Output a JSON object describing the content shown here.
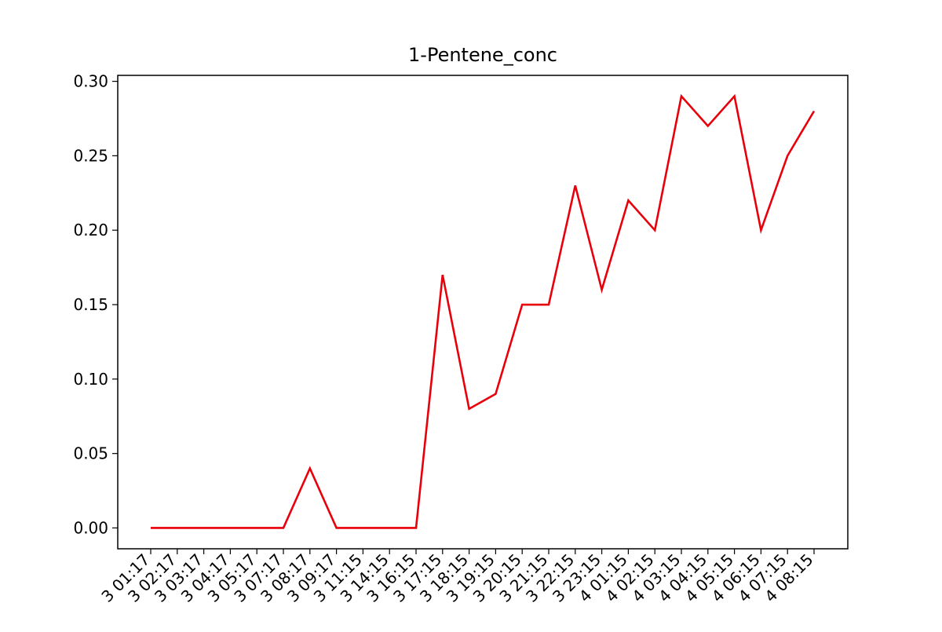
{
  "chart_data": {
    "type": "line",
    "title": "1-Pentene_conc",
    "xlabel": "",
    "ylabel": "",
    "categories": [
      "3 01:17",
      "3 02:17",
      "3 03:17",
      "3 04:17",
      "3 05:17",
      "3 07:17",
      "3 08:17",
      "3 09:17",
      "3 11:15",
      "3 14:15",
      "3 16:15",
      "3 17:15",
      "3 18:15",
      "3 19:15",
      "3 20:15",
      "3 21:15",
      "3 22:15",
      "3 23:15",
      "4 01:15",
      "4 02:15",
      "4 03:15",
      "4 04:15",
      "4 05:15",
      "4 06:15",
      "4 07:15",
      "4 08:15"
    ],
    "series": [
      {
        "color": "#e8000b",
        "values": [
          0,
          0,
          0,
          0,
          0,
          0,
          0.04,
          0,
          0,
          0,
          0,
          0.17,
          0.08,
          0.09,
          0.15,
          0.15,
          0.23,
          0.16,
          0.22,
          0.2,
          0.29,
          0.27,
          0.29,
          0.2,
          0.25,
          0.28
        ]
      }
    ],
    "yticks": [
      "0.00",
      "0.05",
      "0.10",
      "0.15",
      "0.20",
      "0.25",
      "0.30"
    ],
    "ylim": [
      -0.014,
      0.304
    ],
    "grid": false,
    "legend": "none"
  }
}
